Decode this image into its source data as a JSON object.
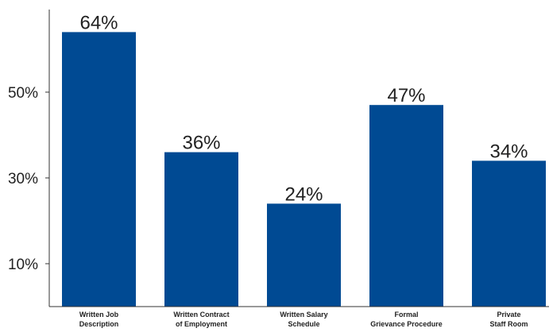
{
  "chart_data": {
    "type": "bar",
    "categories": [
      [
        "Written Job",
        "Description"
      ],
      [
        "Written Contract",
        "of Employment"
      ],
      [
        "Written Salary",
        "Schedule"
      ],
      [
        "Formal",
        "Grievance Procedure"
      ],
      [
        "Private",
        "Staff Room"
      ]
    ],
    "values": [
      64,
      36,
      24,
      47,
      34
    ],
    "value_labels": [
      "64%",
      "36%",
      "24%",
      "47%",
      "34%"
    ],
    "y_ticks": [
      {
        "value": 10,
        "label": "10%"
      },
      {
        "value": 30,
        "label": "30%"
      },
      {
        "value": 50,
        "label": "50%"
      }
    ],
    "ylim": [
      0,
      70
    ],
    "grid": false,
    "legend": "none",
    "bar_color": "#004a93",
    "axis_color": "#333333"
  }
}
